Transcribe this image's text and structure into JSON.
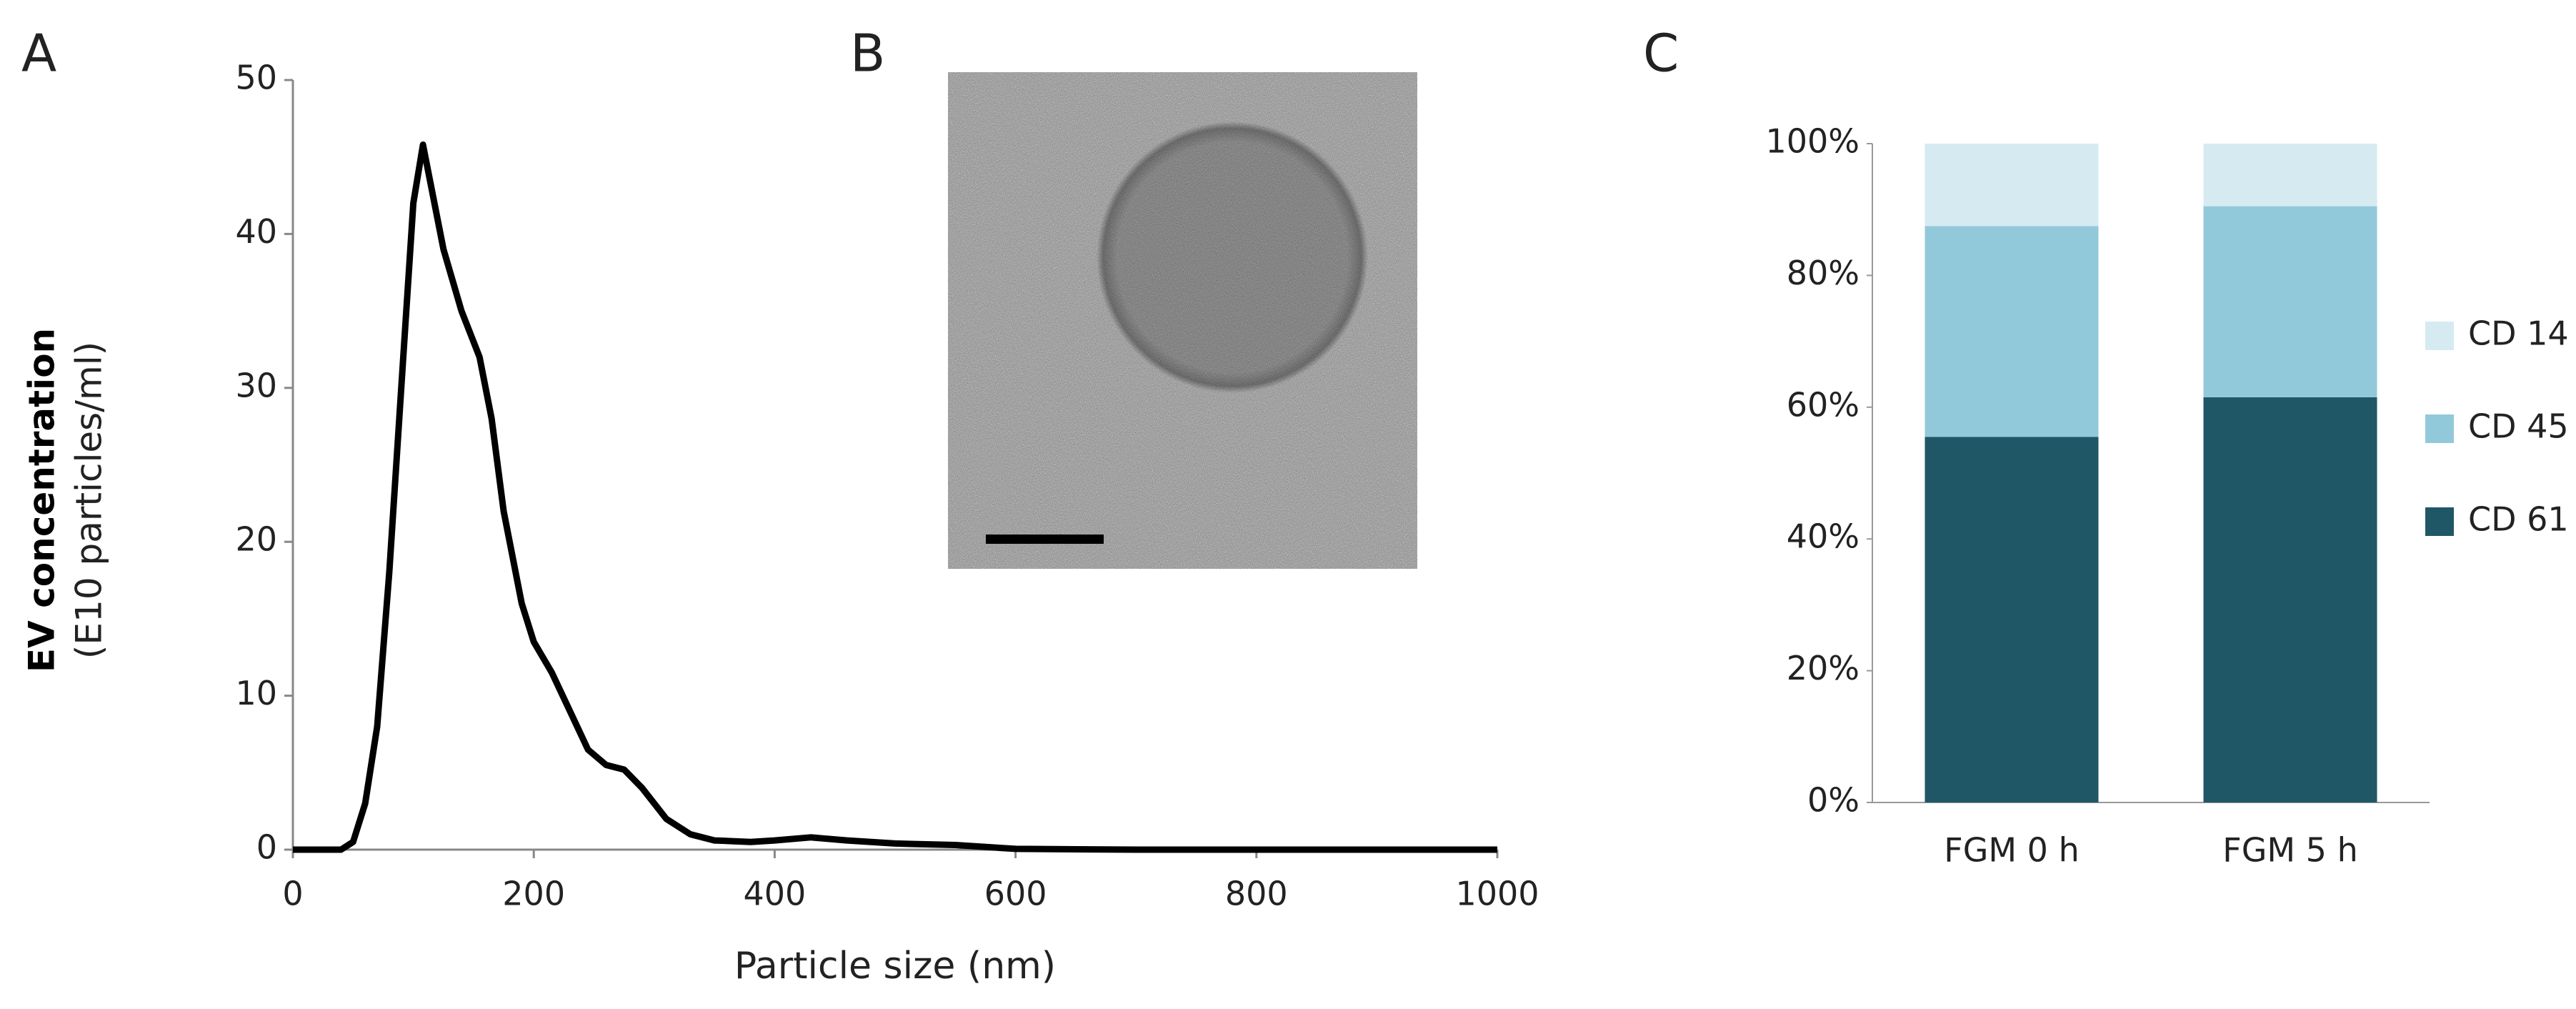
{
  "chart_data": [
    {
      "type": "line",
      "panel": "A",
      "ylabel": "EV concentration",
      "ylabel_sub": "(E10 particles/ml)",
      "xlabel": "Particle size (nm)",
      "x": [
        0,
        40,
        50,
        60,
        70,
        80,
        90,
        100,
        108,
        115,
        125,
        140,
        155,
        165,
        175,
        190,
        200,
        215,
        230,
        245,
        260,
        275,
        290,
        310,
        330,
        350,
        380,
        400,
        430,
        460,
        500,
        550,
        600,
        700,
        1000
      ],
      "values": [
        0,
        0,
        0.5,
        3,
        8,
        18,
        30,
        42,
        45.8,
        43,
        39,
        35,
        32,
        28,
        22,
        16,
        13.5,
        11.5,
        9,
        6.5,
        5.5,
        5.2,
        4,
        2,
        1,
        0.6,
        0.5,
        0.6,
        0.8,
        0.6,
        0.4,
        0.3,
        0.05,
        0,
        0
      ],
      "color": "#000000",
      "xlim": [
        0,
        1000
      ],
      "xticks": [
        0,
        200,
        400,
        600,
        800,
        1000
      ],
      "ylim": [
        0,
        50
      ],
      "yticks": [
        0,
        10,
        20,
        30,
        40,
        50
      ]
    },
    {
      "type": "stacked_bar",
      "panel": "C",
      "categories": [
        "FGM 0 h",
        "FGM 5 h"
      ],
      "series": [
        {
          "name": "CD 61",
          "color": "#205766",
          "values": [
            55.5,
            61.5
          ]
        },
        {
          "name": "CD 45",
          "color": "#92c9da",
          "values": [
            32,
            29
          ]
        },
        {
          "name": "CD 14",
          "color": "#d6eaf1",
          "values": [
            12.5,
            9.5
          ]
        }
      ],
      "ylim": [
        0,
        100
      ],
      "yticks": [
        {
          "value": 0,
          "label": "0%"
        },
        {
          "value": 20,
          "label": "20%"
        },
        {
          "value": 40,
          "label": "40%"
        },
        {
          "value": 60,
          "label": "60%"
        },
        {
          "value": 80,
          "label": "80%"
        },
        {
          "value": 100,
          "label": "100%"
        }
      ],
      "legend": "right"
    }
  ],
  "image_panel": {
    "panel": "B"
  }
}
